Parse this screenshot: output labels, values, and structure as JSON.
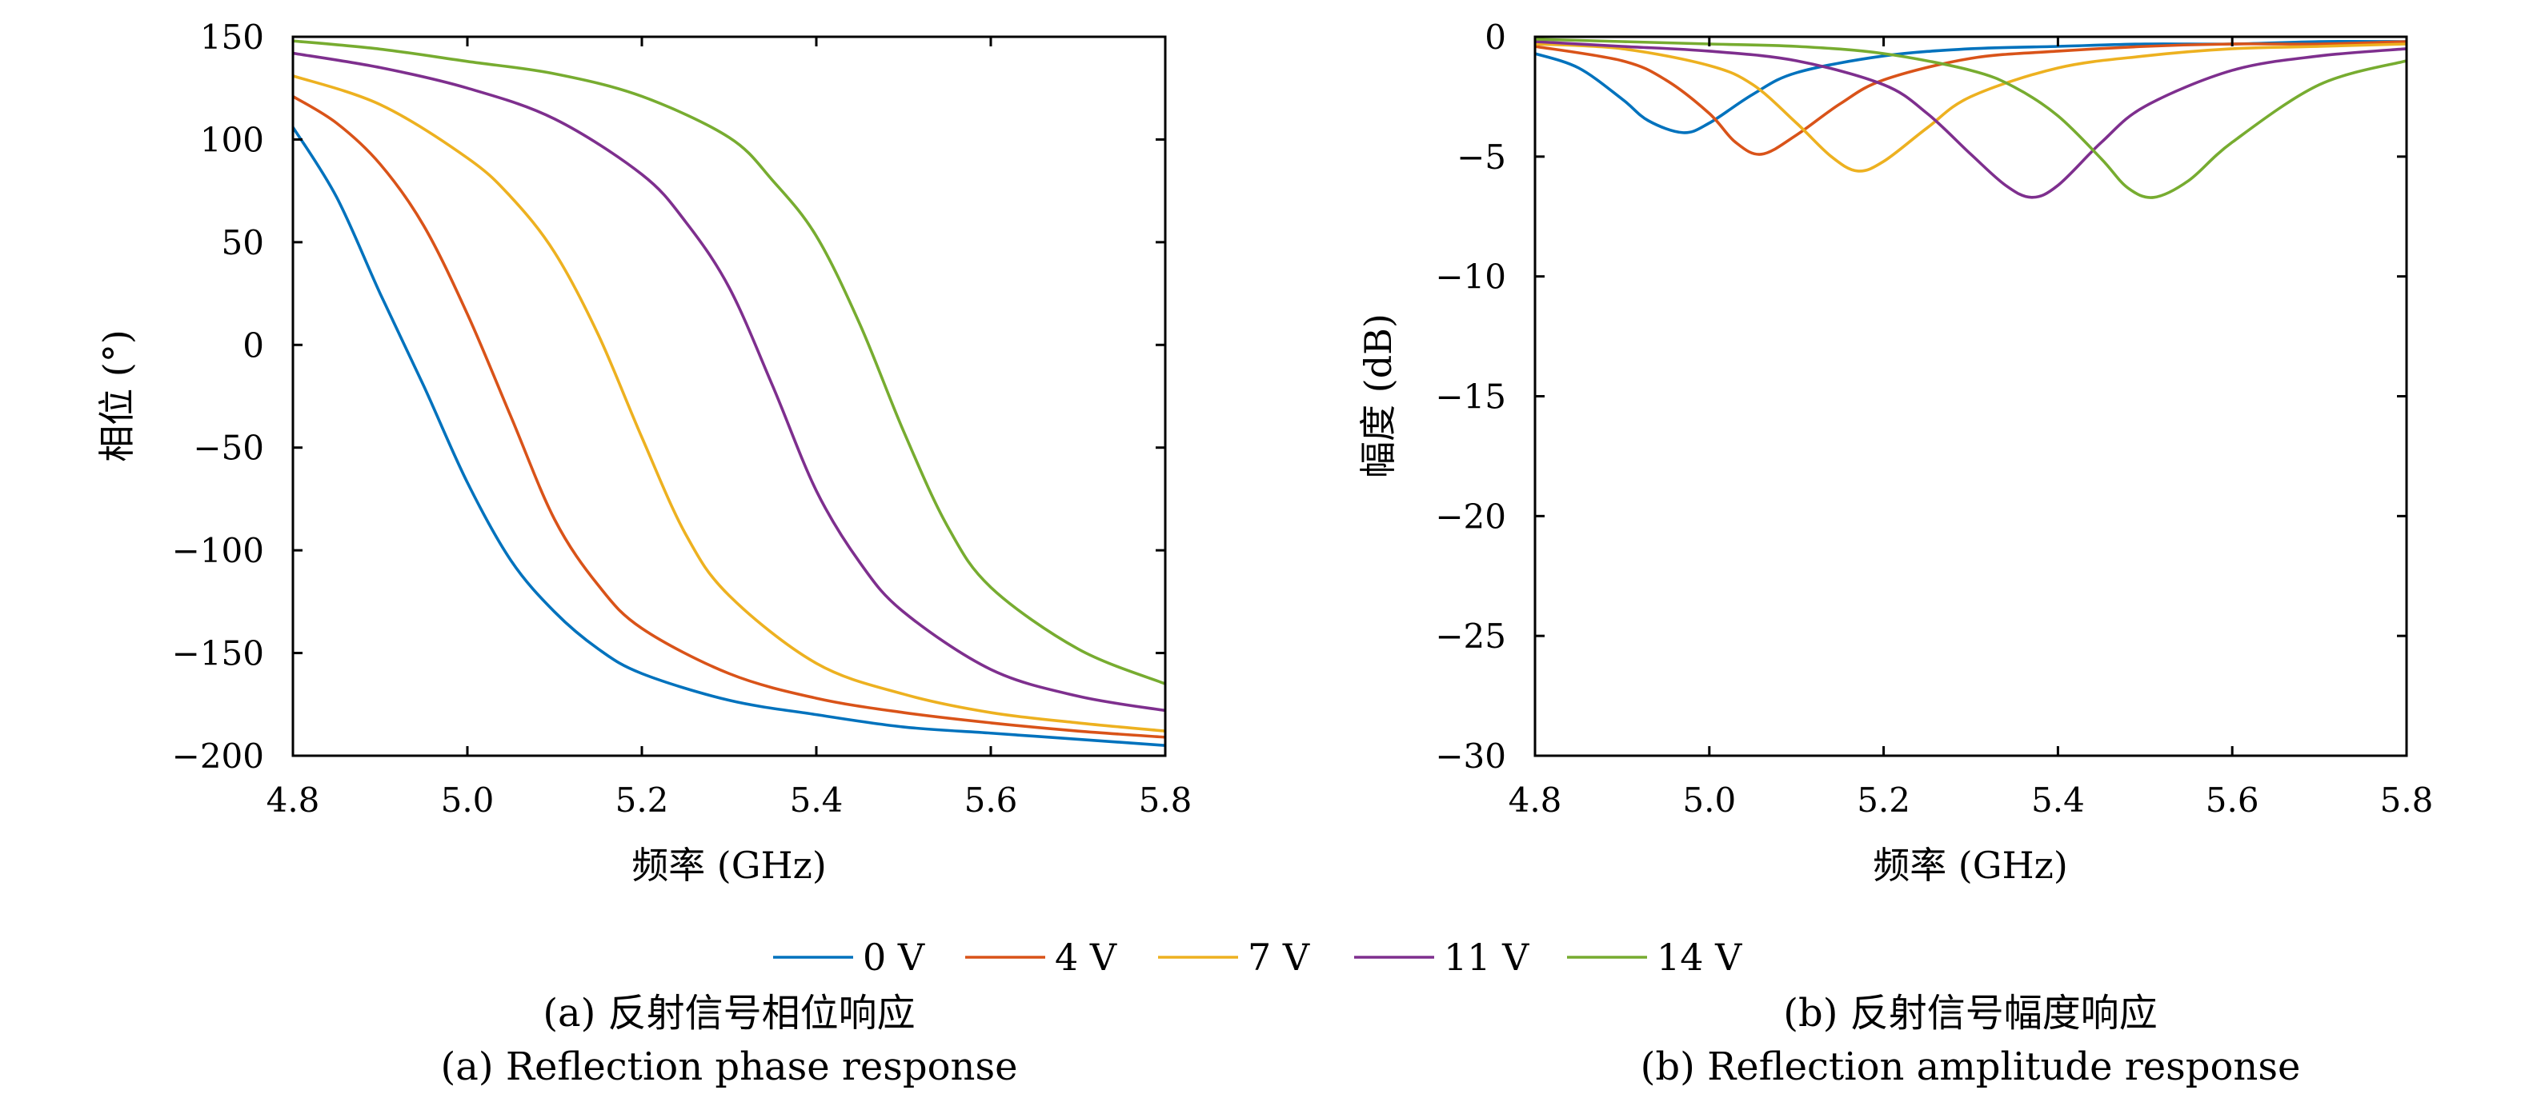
{
  "chart_data": [
    {
      "type": "line",
      "xlabel": "频率 (GHz)",
      "ylabel": "相位 (°)",
      "xlim": [
        4.8,
        5.8
      ],
      "ylim": [
        -200,
        150
      ],
      "xticks": [
        "4.8",
        "5.0",
        "5.2",
        "5.4",
        "5.6",
        "5.8"
      ],
      "yticks": [
        "150",
        "100",
        "50",
        "0",
        "−50",
        "−100",
        "−150",
        "−200"
      ],
      "grid": false,
      "series": [
        {
          "name": "0 V",
          "color": "#0072BD",
          "x": [
            4.8,
            4.85,
            4.9,
            4.95,
            5.0,
            5.05,
            5.1,
            5.15,
            5.2,
            5.3,
            5.4,
            5.5,
            5.6,
            5.7,
            5.8
          ],
          "y": [
            106,
            72,
            25,
            -20,
            -67,
            -105,
            -130,
            -148,
            -160,
            -173,
            -180,
            -186,
            -189,
            -192,
            -195
          ]
        },
        {
          "name": "4 V",
          "color": "#D95319",
          "x": [
            4.8,
            4.85,
            4.9,
            4.95,
            5.0,
            5.05,
            5.1,
            5.15,
            5.2,
            5.3,
            5.4,
            5.5,
            5.6,
            5.7,
            5.8
          ],
          "y": [
            121,
            108,
            88,
            58,
            15,
            -35,
            -85,
            -117,
            -138,
            -160,
            -172,
            -179,
            -184,
            -188,
            -191
          ]
        },
        {
          "name": "7 V",
          "color": "#EDB120",
          "x": [
            4.8,
            4.9,
            5.0,
            5.05,
            5.1,
            5.15,
            5.2,
            5.25,
            5.3,
            5.4,
            5.5,
            5.6,
            5.7,
            5.8
          ],
          "y": [
            131,
            117,
            91,
            72,
            45,
            5,
            -45,
            -92,
            -122,
            -155,
            -170,
            -179,
            -184,
            -188
          ]
        },
        {
          "name": "11 V",
          "color": "#7E2F8E",
          "x": [
            4.8,
            4.9,
            5.0,
            5.1,
            5.2,
            5.25,
            5.3,
            5.35,
            5.4,
            5.45,
            5.5,
            5.6,
            5.7,
            5.8
          ],
          "y": [
            142,
            135,
            125,
            110,
            83,
            60,
            28,
            -20,
            -71,
            -106,
            -130,
            -158,
            -171,
            -178
          ]
        },
        {
          "name": "14 V",
          "color": "#77AC30",
          "x": [
            4.8,
            4.9,
            5.0,
            5.1,
            5.2,
            5.3,
            5.35,
            5.4,
            5.45,
            5.5,
            5.55,
            5.6,
            5.7,
            5.8
          ],
          "y": [
            148,
            144,
            138,
            132,
            121,
            101,
            80,
            53,
            10,
            -42,
            -88,
            -118,
            -148,
            -165
          ]
        }
      ]
    },
    {
      "type": "line",
      "xlabel": "频率 (GHz)",
      "ylabel": "幅度 (dB)",
      "xlim": [
        4.8,
        5.8
      ],
      "ylim": [
        -30,
        0
      ],
      "xticks": [
        "4.8",
        "5.0",
        "5.2",
        "5.4",
        "5.6",
        "5.8"
      ],
      "yticks": [
        "0",
        "−5",
        "−10",
        "−15",
        "−20",
        "−25",
        "−30"
      ],
      "grid": false,
      "series": [
        {
          "name": "0 V",
          "color": "#0072BD",
          "x": [
            4.8,
            4.85,
            4.9,
            4.93,
            4.97,
            5.0,
            5.05,
            5.1,
            5.2,
            5.3,
            5.4,
            5.5,
            5.6,
            5.7,
            5.8
          ],
          "y": [
            -0.7,
            -1.3,
            -2.6,
            -3.5,
            -4.0,
            -3.6,
            -2.4,
            -1.5,
            -0.8,
            -0.5,
            -0.4,
            -0.3,
            -0.3,
            -0.2,
            -0.2
          ]
        },
        {
          "name": "4 V",
          "color": "#D95319",
          "x": [
            4.8,
            4.9,
            4.95,
            5.0,
            5.03,
            5.06,
            5.1,
            5.15,
            5.2,
            5.3,
            5.4,
            5.5,
            5.6,
            5.7,
            5.8
          ],
          "y": [
            -0.4,
            -1.0,
            -1.8,
            -3.2,
            -4.4,
            -4.9,
            -4.1,
            -2.8,
            -1.8,
            -0.9,
            -0.6,
            -0.4,
            -0.3,
            -0.3,
            -0.2
          ]
        },
        {
          "name": "7 V",
          "color": "#EDB120",
          "x": [
            4.8,
            4.9,
            5.0,
            5.05,
            5.1,
            5.14,
            5.17,
            5.2,
            5.25,
            5.3,
            5.4,
            5.5,
            5.6,
            5.7,
            5.8
          ],
          "y": [
            -0.3,
            -0.5,
            -1.2,
            -2.0,
            -3.6,
            -5.0,
            -5.6,
            -5.2,
            -3.8,
            -2.5,
            -1.3,
            -0.8,
            -0.5,
            -0.4,
            -0.3
          ]
        },
        {
          "name": "11 V",
          "color": "#7E2F8E",
          "x": [
            4.8,
            4.9,
            5.0,
            5.1,
            5.2,
            5.25,
            5.3,
            5.34,
            5.37,
            5.4,
            5.45,
            5.5,
            5.6,
            5.7,
            5.8
          ],
          "y": [
            -0.2,
            -0.4,
            -0.6,
            -1.0,
            -2.0,
            -3.2,
            -4.9,
            -6.2,
            -6.7,
            -6.2,
            -4.4,
            -2.9,
            -1.4,
            -0.8,
            -0.5
          ]
        },
        {
          "name": "14 V",
          "color": "#77AC30",
          "x": [
            4.8,
            4.9,
            5.0,
            5.1,
            5.2,
            5.3,
            5.35,
            5.4,
            5.45,
            5.48,
            5.51,
            5.55,
            5.6,
            5.7,
            5.8
          ],
          "y": [
            -0.1,
            -0.2,
            -0.3,
            -0.4,
            -0.7,
            -1.4,
            -2.1,
            -3.3,
            -5.1,
            -6.3,
            -6.7,
            -6.0,
            -4.4,
            -2.0,
            -1.0
          ]
        }
      ]
    }
  ],
  "legend": {
    "items": [
      {
        "label": "0 V",
        "color": "#0072BD"
      },
      {
        "label": "4 V",
        "color": "#D95319"
      },
      {
        "label": "7 V",
        "color": "#EDB120"
      },
      {
        "label": "11 V",
        "color": "#7E2F8E"
      },
      {
        "label": "14 V",
        "color": "#77AC30"
      }
    ]
  },
  "captions": {
    "a_cn": "(a) 反射信号相位响应",
    "a_en": "(a) Reflection phase response",
    "b_cn": "(b) 反射信号幅度响应",
    "b_en": "(b) Reflection amplitude response"
  }
}
